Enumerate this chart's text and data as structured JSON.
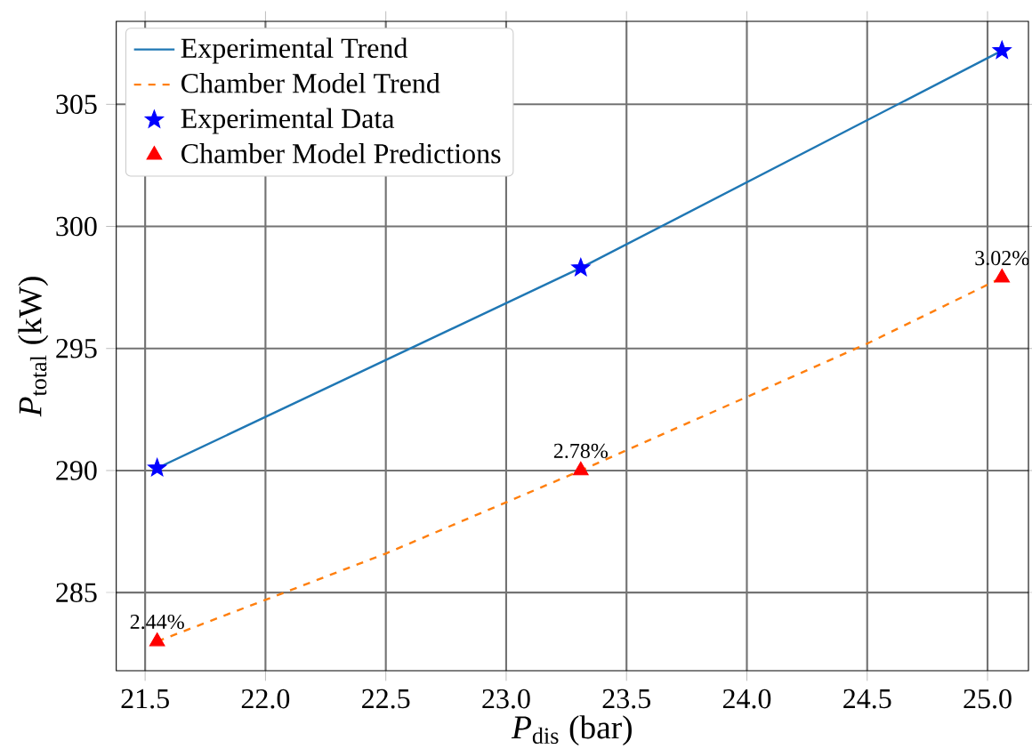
{
  "chart_data": {
    "type": "line",
    "xlabel": "*P*$_{dis}$ (bar)",
    "ylabel": "*P*$_{total}$ (kW)",
    "xlim": [
      21.38,
      25.17
    ],
    "ylim": [
      281.8,
      308.4
    ],
    "xticks": [
      21.5,
      {
        "value": 22.0,
        "label": "22.0"
      },
      22.5,
      {
        "value": 23.0,
        "label": "23.0"
      },
      23.5,
      {
        "value": 24.0,
        "label": "24.0"
      },
      24.5,
      {
        "value": 25.0,
        "label": "25.0"
      }
    ],
    "yticks": [
      285,
      290,
      295,
      300,
      305
    ],
    "grid": true,
    "legend": "top left",
    "series": [
      {
        "name": "Experimental Trend",
        "color": "#1f77b4",
        "line_style": "solid",
        "marker": "none",
        "x": [
          21.55,
          23.31,
          25.06
        ],
        "values": [
          290.1,
          298.3,
          307.2
        ]
      },
      {
        "name": "Chamber Model Trend",
        "color": "#ff7f0e",
        "line_style": "dashed",
        "marker": "none",
        "x": [
          21.55,
          22.5,
          23.31,
          24.5,
          25.06
        ],
        "values": [
          283.0,
          286.6,
          290.0,
          295.2,
          297.9
        ]
      },
      {
        "name": "Experimental Data",
        "type": "scatter",
        "color": "#0000ff",
        "marker": "star",
        "x": [
          21.55,
          23.31,
          25.06
        ],
        "values": [
          290.1,
          298.3,
          307.2
        ]
      },
      {
        "name": "Chamber Model Predictions",
        "type": "scatter",
        "color": "#ff0000",
        "marker": "triangle",
        "x": [
          21.55,
          23.31,
          25.06
        ],
        "values": [
          283.0,
          290.0,
          297.9
        ]
      }
    ],
    "annotations": [
      {
        "text": "2.44%",
        "x": 21.55,
        "y": 283.0
      },
      {
        "text": "2.78%",
        "x": 23.31,
        "y": 290.0
      },
      {
        "text": "3.02%",
        "x": 25.06,
        "y": 297.9
      }
    ]
  }
}
